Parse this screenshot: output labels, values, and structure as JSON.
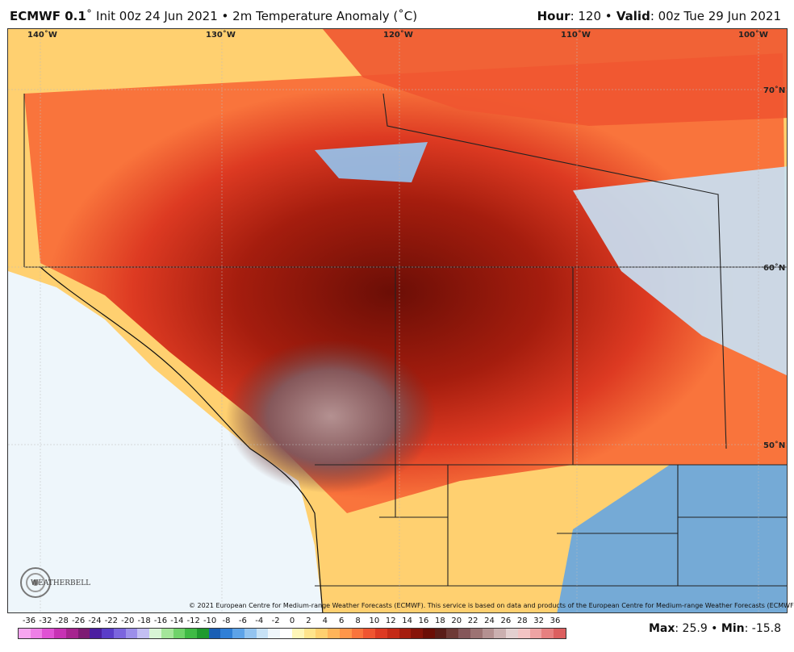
{
  "header": {
    "model": "ECMWF 0.1",
    "degree": "˚",
    "init": " Init 00z 24 Jun 2021",
    "sep": " • ",
    "field": "2m Temperature Anomaly (˚C)",
    "hour_label": "Hour",
    "hour_value": ": 120 ",
    "bullet": "•",
    "valid_label": " Valid",
    "valid_value": ": 00z Tue 29 Jun 2021"
  },
  "map": {
    "longitudes": [
      "140˚W",
      "130˚W",
      "120˚W",
      "110˚W",
      "100˚W"
    ],
    "latitudes": [
      "70˚N",
      "60˚N",
      "50˚N"
    ]
  },
  "copyright": "© 2021 European Centre for Medium-range Weather Forecasts (ECMWF). This service is based on data and products of the European Centre for Medium-range Weather Forecasts (ECMWF).",
  "logo": {
    "text": "WEATHERBELL"
  },
  "colorbar": {
    "labels": [
      "-36",
      "-32",
      "-28",
      "-26",
      "-24",
      "-22",
      "-20",
      "-18",
      "-16",
      "-14",
      "-12",
      "-10",
      "-8",
      "-6",
      "-4",
      "-2",
      "0",
      "2",
      "4",
      "6",
      "8",
      "10",
      "12",
      "14",
      "16",
      "18",
      "20",
      "22",
      "24",
      "26",
      "28",
      "32",
      "36"
    ],
    "colors": [
      "#f7a6f0",
      "#ee7fe6",
      "#e052d4",
      "#c732b4",
      "#a6248f",
      "#7d1c73",
      "#4b1ea0",
      "#5a3dc8",
      "#7b65de",
      "#9c8fea",
      "#c3bff2",
      "#d8f5d5",
      "#a4e69a",
      "#6fd36a",
      "#3fba45",
      "#1f9a2e",
      "#1a5fb4",
      "#2f7fd6",
      "#5da3e8",
      "#93c4f0",
      "#c7e2f6",
      "#eef6fb",
      "#ffffff",
      "#fff6b8",
      "#ffe48c",
      "#ffd070",
      "#ffb45a",
      "#ff964a",
      "#f9743c",
      "#ef5530",
      "#dd3a22",
      "#c42a16",
      "#a51d0e",
      "#861409",
      "#6b0e06",
      "#5a1d18",
      "#6e3a36",
      "#85575a",
      "#9c7373",
      "#b49191",
      "#cbb0b0",
      "#e3d0d0",
      "#f2c4c4",
      "#eea3a3",
      "#e68080",
      "#dc5f5f"
    ]
  },
  "stats": {
    "max_label": "Max",
    "max_value": ": 25.9",
    "sep": " • ",
    "min_label": "Min",
    "min_value": ": -15.8"
  }
}
